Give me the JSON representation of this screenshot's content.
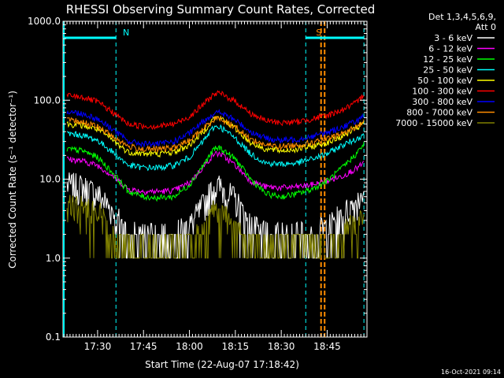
{
  "chart_data": {
    "type": "line",
    "title": "RHESSI Observing Summary Count Rates, Corrected",
    "xlabel": "Start Time (22-Aug-07 17:18:42)",
    "ylabel": "Corrected Count Rate (s⁻¹ detector⁻¹)",
    "yscale": "log",
    "ylim": [
      0.1,
      1000
    ],
    "xlim": [
      "17:18:42",
      "18:58:00"
    ],
    "x_ticks": [
      "17:30",
      "17:45",
      "18:00",
      "18:15",
      "18:30",
      "18:45"
    ],
    "y_ticks": [
      "0.1",
      "1.0",
      "10.0",
      "100.0",
      "1000.0"
    ],
    "legend_title": [
      "Det 1,3,4,5,6,9,",
      "Att 0"
    ],
    "legend_position": "top-right",
    "timestamp": "16-Oct-2021 09:14",
    "markers": [
      {
        "label": "N",
        "start": "17:18:42",
        "end": "17:36:00",
        "color": "#00ffff"
      },
      {
        "label": "S",
        "start": "18:38:00",
        "end": "18:57:00",
        "color": "#ff8c00"
      }
    ],
    "vlines_cyan": [
      "17:36:00",
      "18:38:00",
      "18:57:00"
    ],
    "vlines_orange": [
      "18:43:00",
      "18:44:10"
    ],
    "x": [
      "17:20",
      "17:25",
      "17:30",
      "17:35",
      "17:40",
      "17:45",
      "17:50",
      "17:55",
      "18:00",
      "18:05",
      "18:08",
      "18:10",
      "18:15",
      "18:20",
      "18:25",
      "18:30",
      "18:35",
      "18:40",
      "18:45",
      "18:50",
      "18:55",
      "18:57"
    ],
    "series": [
      {
        "name": "3 - 6 keV",
        "color": "#ffffff",
        "values": [
          8.5,
          8.0,
          6.5,
          4.0,
          2.0,
          2.0,
          2.0,
          2.0,
          2.5,
          5.0,
          8.0,
          8.0,
          5.5,
          2.5,
          2.0,
          2.0,
          2.0,
          2.0,
          2.5,
          3.5,
          5.5,
          8.0
        ]
      },
      {
        "name": "6 - 12 keV",
        "color": "#ff00ff",
        "values": [
          18,
          17,
          15,
          11,
          7.5,
          7.0,
          7.0,
          7.2,
          9.0,
          15,
          21,
          21,
          15,
          9.5,
          8.0,
          7.8,
          8.0,
          8.5,
          9.5,
          11,
          14,
          16
        ]
      },
      {
        "name": "12 - 25 keV",
        "color": "#00ff00",
        "values": [
          24,
          23,
          19,
          12,
          7.0,
          6.0,
          5.8,
          6.0,
          8.5,
          16,
          24,
          25,
          18,
          10,
          6.5,
          6.0,
          6.5,
          7.5,
          9.5,
          14,
          22,
          28
        ]
      },
      {
        "name": "25 - 50 keV",
        "color": "#00ffff",
        "values": [
          38,
          36,
          31,
          22,
          15,
          14,
          14,
          15,
          19,
          32,
          46,
          46,
          33,
          21,
          16,
          15.5,
          16,
          18,
          21,
          27,
          33,
          38
        ]
      },
      {
        "name": "50 - 100 keV",
        "color": "#ffff00",
        "values": [
          50,
          48,
          43,
          31,
          22,
          21,
          21,
          22,
          27,
          42,
          60,
          60,
          44,
          29,
          24,
          23,
          24,
          26,
          29,
          35,
          45,
          52
        ]
      },
      {
        "name": "100 - 300 keV",
        "color": "#ff0000",
        "values": [
          115,
          110,
          95,
          70,
          50,
          47,
          47,
          50,
          62,
          92,
          120,
          122,
          97,
          68,
          55,
          52,
          53,
          58,
          64,
          76,
          95,
          120
        ]
      },
      {
        "name": "300 - 800 keV",
        "color": "#0000ff",
        "values": [
          72,
          68,
          58,
          43,
          30,
          28,
          28,
          30,
          38,
          56,
          68,
          70,
          56,
          40,
          33,
          31,
          32,
          35,
          39,
          46,
          56,
          62
        ]
      },
      {
        "name": "800 - 7000 keV",
        "color": "#ff8c00",
        "values": [
          56,
          53,
          46,
          35,
          26,
          24,
          24,
          25,
          31,
          45,
          58,
          59,
          46,
          32,
          27,
          26,
          27,
          29,
          32,
          38,
          47,
          54
        ]
      },
      {
        "name": "7000 - 15000 keV",
        "color": "#808000",
        "values": [
          4.5,
          4.3,
          4.0,
          2.0,
          1.0,
          1.0,
          1.0,
          1.0,
          1.5,
          2.5,
          4.0,
          4.0,
          2.5,
          1.2,
          1.0,
          1.0,
          1.0,
          1.0,
          1.5,
          2.0,
          3.0,
          4.0
        ]
      }
    ]
  }
}
